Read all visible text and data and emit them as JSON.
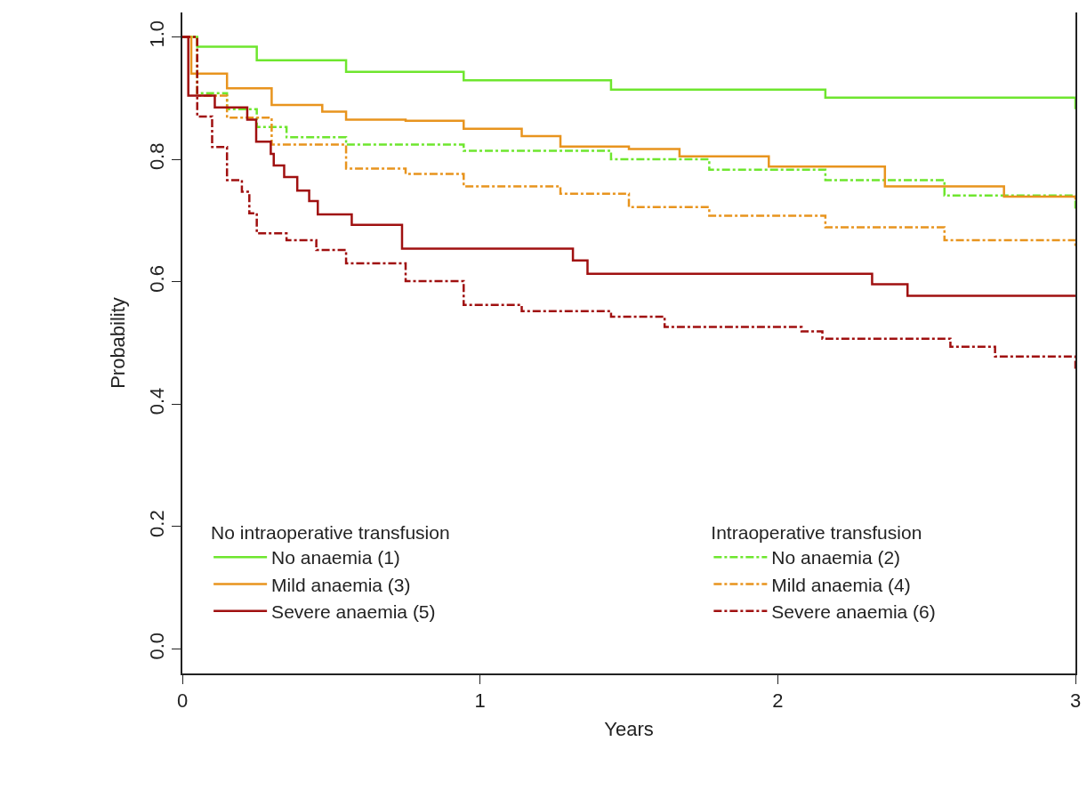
{
  "chart_data": {
    "type": "step",
    "xlabel": "Years",
    "ylabel": "Probability",
    "legend_title": [
      "No intraoperative transfusion",
      "Intraoperative transfusion"
    ],
    "legend": "bottom",
    "xlim": [
      0,
      3
    ],
    "xticks": [
      0,
      1,
      2,
      3
    ],
    "ylim": [
      -0.04,
      1.04
    ],
    "yticks": [
      {
        "value": 0,
        "label": "0.0"
      },
      0.2,
      0.4,
      0.6,
      0.8,
      {
        "value": 1,
        "label": "1.0"
      }
    ],
    "series": [
      {
        "name": "No anaemia (1)",
        "color": "#6ee62e",
        "line_style": "solid",
        "x": [
          0,
          0.05,
          0.25,
          0.55,
          0.945,
          1.44,
          2.16,
          3.0
        ],
        "values": [
          1.0,
          0.984,
          0.962,
          0.943,
          0.929,
          0.914,
          0.901,
          0.882
        ]
      },
      {
        "name": "No anaemia (2)",
        "color": "#6ee62e",
        "line_style": "dashed",
        "x": [
          0,
          0.05,
          0.15,
          0.25,
          0.35,
          0.55,
          0.945,
          1.44,
          1.77,
          2.16,
          2.56,
          3.0
        ],
        "values": [
          1.0,
          0.908,
          0.882,
          0.853,
          0.836,
          0.824,
          0.814,
          0.8,
          0.783,
          0.766,
          0.741,
          0.719
        ]
      },
      {
        "name": "Mild anaemia (3)",
        "color": "#e8941e",
        "line_style": "solid",
        "x": [
          0,
          0.03,
          0.15,
          0.3,
          0.47,
          0.55,
          0.75,
          0.945,
          1.14,
          1.27,
          1.5,
          1.67,
          1.97,
          2.36,
          2.76,
          3.0
        ],
        "values": [
          1.0,
          0.94,
          0.916,
          0.889,
          0.878,
          0.865,
          0.863,
          0.85,
          0.838,
          0.821,
          0.817,
          0.805,
          0.788,
          0.756,
          0.739,
          0.734
        ]
      },
      {
        "name": "Mild anaemia (4)",
        "color": "#e8941e",
        "line_style": "dashed",
        "x": [
          0,
          0.05,
          0.15,
          0.3,
          0.55,
          0.75,
          0.945,
          1.27,
          1.5,
          1.77,
          2.16,
          2.56,
          3.0
        ],
        "values": [
          1.0,
          0.904,
          0.868,
          0.824,
          0.785,
          0.776,
          0.756,
          0.744,
          0.722,
          0.708,
          0.689,
          0.668,
          0.654
        ]
      },
      {
        "name": "Severe anaemia (5)",
        "color": "#a01010",
        "line_style": "solid",
        "x": [
          0,
          0.02,
          0.109,
          0.218,
          0.248,
          0.297,
          0.307,
          0.342,
          0.386,
          0.426,
          0.455,
          0.569,
          0.738,
          1.312,
          1.361,
          2.317,
          2.436,
          3.0
        ],
        "values": [
          1.0,
          0.904,
          0.885,
          0.865,
          0.829,
          0.809,
          0.79,
          0.771,
          0.749,
          0.732,
          0.71,
          0.693,
          0.654,
          0.635,
          0.613,
          0.596,
          0.577,
          0.577
        ]
      },
      {
        "name": "Severe anaemia (6)",
        "color": "#a01010",
        "line_style": "dashed",
        "x": [
          0,
          0.05,
          0.1,
          0.15,
          0.2,
          0.225,
          0.25,
          0.35,
          0.45,
          0.55,
          0.75,
          0.945,
          1.14,
          1.44,
          1.62,
          2.08,
          2.15,
          2.58,
          2.73,
          3.0
        ],
        "values": [
          1.0,
          0.87,
          0.82,
          0.766,
          0.747,
          0.712,
          0.679,
          0.668,
          0.652,
          0.63,
          0.601,
          0.562,
          0.552,
          0.543,
          0.526,
          0.519,
          0.507,
          0.494,
          0.478,
          0.457
        ]
      }
    ]
  }
}
